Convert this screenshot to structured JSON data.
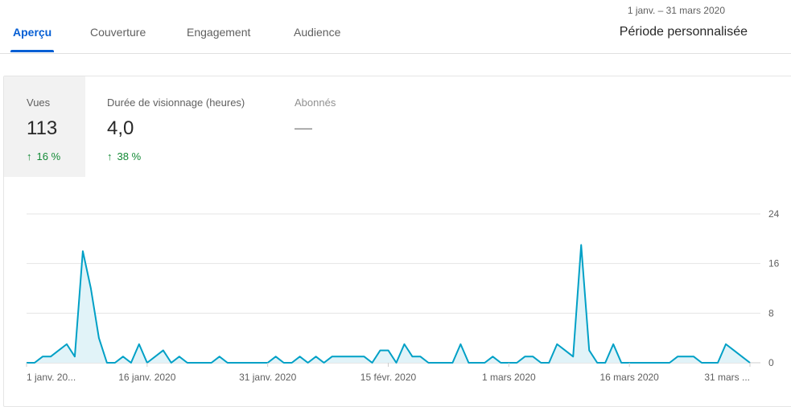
{
  "tabs": [
    {
      "label": "Aperçu",
      "active": true
    },
    {
      "label": "Couverture",
      "active": false
    },
    {
      "label": "Engagement",
      "active": false
    },
    {
      "label": "Audience",
      "active": false
    }
  ],
  "date_range": "1 janv. – 31 mars 2020",
  "period_label": "Période personnalisée",
  "metrics": [
    {
      "label": "Vues",
      "value": "113",
      "change": "16 %",
      "selected": true
    },
    {
      "label": "Durée de visionnage (heures)",
      "value": "4,0",
      "change": "38 %",
      "selected": false
    },
    {
      "label": "Abonnés",
      "value": "—",
      "change": "",
      "selected": false
    }
  ],
  "colors": {
    "accent": "#065fd4",
    "line": "#00a0c6",
    "fill": "#e1f3f8",
    "positive": "#138a36"
  },
  "chart_data": {
    "type": "area",
    "y_ticks": [
      "24",
      "16",
      "8",
      "0"
    ],
    "ylim": [
      0,
      24
    ],
    "x_tick_labels": [
      "1 janv. 20...",
      "16 janv. 2020",
      "31 janv. 2020",
      "15 févr. 2020",
      "1 mars 2020",
      "16 mars 2020",
      "31 mars ..."
    ],
    "series": [
      {
        "values": [
          0,
          0,
          1,
          1,
          2,
          3,
          1,
          18,
          12,
          4,
          0,
          0,
          1,
          0,
          3,
          0,
          1,
          2,
          0,
          1,
          0,
          0,
          0,
          0,
          1,
          0,
          0,
          0,
          0,
          0,
          0,
          1,
          0,
          0,
          1,
          0,
          1,
          0,
          1,
          1,
          1,
          1,
          1,
          0,
          2,
          2,
          0,
          3,
          1,
          1,
          0,
          0,
          0,
          0,
          3,
          0,
          0,
          0,
          1,
          0,
          0,
          0,
          1,
          1,
          0,
          0,
          3,
          2,
          1,
          19,
          2,
          0,
          0,
          3,
          0,
          0,
          0,
          0,
          0,
          0,
          0,
          1,
          1,
          1,
          0,
          0,
          0,
          3,
          2,
          1,
          0
        ]
      }
    ]
  }
}
